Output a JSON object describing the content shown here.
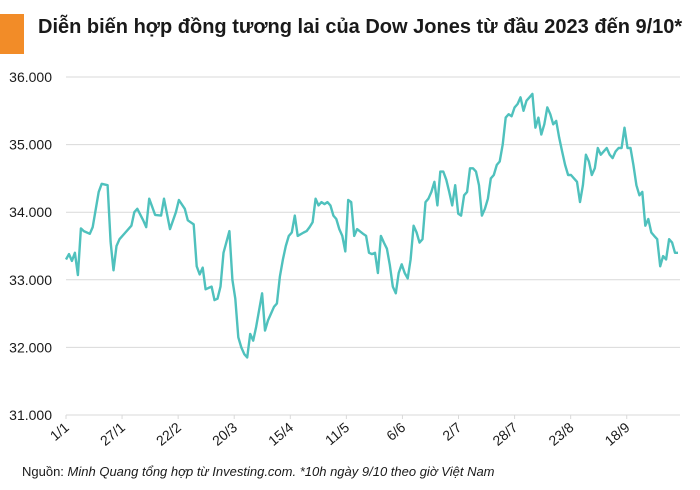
{
  "title": "Diễn biến hợp đồng tương lai của Dow Jones từ đầu 2023 đến 9/10*",
  "source_label": "Nguồn:",
  "source_text": "Minh Quang tổng hợp từ Investing.com. *10h ngày 9/10 theo giờ Việt Nam",
  "colors": {
    "accent": "#f28c28",
    "line": "#4fc1bd",
    "grid": "#d9d9d9",
    "text": "#1a1a1a"
  },
  "chart_data": {
    "type": "line",
    "title": "Diễn biến hợp đồng tương lai của Dow Jones từ đầu 2023 đến 9/10*",
    "xlabel": "",
    "ylabel": "",
    "ylim": [
      31000,
      36000
    ],
    "yticks": [
      {
        "value": 31000,
        "label": "31.000"
      },
      {
        "value": 32000,
        "label": "32.000"
      },
      {
        "value": 33000,
        "label": "33.000"
      },
      {
        "value": 34000,
        "label": "34.000"
      },
      {
        "value": 35000,
        "label": "35.000"
      },
      {
        "value": 36000,
        "label": "36.000"
      }
    ],
    "xticks": [
      "1/1",
      "27/1",
      "22/2",
      "20/3",
      "15/4",
      "11/5",
      "6/6",
      "2/7",
      "28/7",
      "23/8",
      "18/9"
    ],
    "grid": true,
    "legend": "none",
    "x_days_per_tick": 26,
    "total_days": 282,
    "series": [
      {
        "values": [
          [
            0,
            33300
          ],
          [
            1,
            33380
          ],
          [
            2,
            33280
          ],
          [
            3,
            33400
          ],
          [
            4,
            33070
          ],
          [
            5,
            33760
          ],
          [
            6,
            33720
          ],
          [
            8,
            33680
          ],
          [
            9,
            33780
          ],
          [
            11,
            34300
          ],
          [
            12,
            34420
          ],
          [
            14,
            34400
          ],
          [
            15,
            33560
          ],
          [
            16,
            33140
          ],
          [
            17,
            33500
          ],
          [
            18,
            33600
          ],
          [
            20,
            33700
          ],
          [
            22,
            33800
          ],
          [
            23,
            34000
          ],
          [
            24,
            34050
          ],
          [
            26,
            33880
          ],
          [
            27,
            33780
          ],
          [
            28,
            34200
          ],
          [
            29,
            34080
          ],
          [
            30,
            33960
          ],
          [
            32,
            33950
          ],
          [
            33,
            34200
          ],
          [
            35,
            33750
          ],
          [
            37,
            34000
          ],
          [
            38,
            34180
          ],
          [
            40,
            34050
          ],
          [
            41,
            33880
          ],
          [
            43,
            33820
          ],
          [
            44,
            33200
          ],
          [
            45,
            33080
          ],
          [
            46,
            33180
          ],
          [
            47,
            32860
          ],
          [
            48,
            32880
          ],
          [
            49,
            32900
          ],
          [
            50,
            32700
          ],
          [
            51,
            32720
          ],
          [
            52,
            32900
          ],
          [
            53,
            33400
          ],
          [
            55,
            33720
          ],
          [
            56,
            33000
          ],
          [
            57,
            32720
          ],
          [
            58,
            32150
          ],
          [
            59,
            32000
          ],
          [
            60,
            31900
          ],
          [
            61,
            31850
          ],
          [
            62,
            32200
          ],
          [
            63,
            32100
          ],
          [
            64,
            32300
          ],
          [
            65,
            32550
          ],
          [
            66,
            32800
          ],
          [
            67,
            32250
          ],
          [
            68,
            32400
          ],
          [
            69,
            32500
          ],
          [
            70,
            32600
          ],
          [
            71,
            32650
          ],
          [
            72,
            33050
          ],
          [
            73,
            33300
          ],
          [
            74,
            33500
          ],
          [
            75,
            33650
          ],
          [
            76,
            33700
          ],
          [
            77,
            33950
          ],
          [
            78,
            33650
          ],
          [
            80,
            33700
          ],
          [
            81,
            33720
          ],
          [
            82,
            33780
          ],
          [
            83,
            33850
          ],
          [
            84,
            34200
          ],
          [
            85,
            34100
          ],
          [
            86,
            34150
          ],
          [
            87,
            34120
          ],
          [
            88,
            34150
          ],
          [
            89,
            34100
          ],
          [
            90,
            33950
          ],
          [
            91,
            33900
          ],
          [
            92,
            33750
          ],
          [
            93,
            33650
          ],
          [
            94,
            33420
          ],
          [
            95,
            34180
          ],
          [
            96,
            34150
          ],
          [
            97,
            33650
          ],
          [
            98,
            33750
          ],
          [
            100,
            33680
          ],
          [
            101,
            33650
          ],
          [
            102,
            33400
          ],
          [
            103,
            33380
          ],
          [
            104,
            33400
          ],
          [
            105,
            33100
          ],
          [
            106,
            33650
          ],
          [
            107,
            33550
          ],
          [
            108,
            33460
          ],
          [
            109,
            33220
          ],
          [
            110,
            32900
          ],
          [
            111,
            32800
          ],
          [
            112,
            33100
          ],
          [
            113,
            33230
          ],
          [
            114,
            33100
          ],
          [
            115,
            33020
          ],
          [
            116,
            33300
          ],
          [
            117,
            33800
          ],
          [
            118,
            33700
          ],
          [
            119,
            33550
          ],
          [
            120,
            33600
          ],
          [
            121,
            34150
          ],
          [
            122,
            34200
          ],
          [
            123,
            34300
          ],
          [
            124,
            34450
          ],
          [
            125,
            34100
          ],
          [
            126,
            34600
          ],
          [
            127,
            34600
          ],
          [
            128,
            34480
          ],
          [
            129,
            34300
          ],
          [
            130,
            34100
          ],
          [
            131,
            34400
          ],
          [
            132,
            33980
          ],
          [
            133,
            33950
          ],
          [
            134,
            34250
          ],
          [
            135,
            34300
          ],
          [
            136,
            34650
          ],
          [
            137,
            34650
          ],
          [
            138,
            34600
          ],
          [
            139,
            34400
          ],
          [
            140,
            33950
          ],
          [
            141,
            34050
          ],
          [
            142,
            34200
          ],
          [
            143,
            34500
          ],
          [
            144,
            34550
          ],
          [
            145,
            34700
          ],
          [
            146,
            34750
          ],
          [
            147,
            35000
          ],
          [
            148,
            35400
          ],
          [
            149,
            35450
          ],
          [
            150,
            35420
          ],
          [
            151,
            35550
          ],
          [
            152,
            35600
          ],
          [
            153,
            35700
          ],
          [
            154,
            35500
          ],
          [
            155,
            35650
          ],
          [
            156,
            35700
          ],
          [
            157,
            35750
          ],
          [
            158,
            35250
          ],
          [
            159,
            35400
          ],
          [
            160,
            35150
          ],
          [
            161,
            35300
          ],
          [
            162,
            35550
          ],
          [
            163,
            35450
          ],
          [
            164,
            35300
          ],
          [
            165,
            35350
          ],
          [
            166,
            35100
          ],
          [
            167,
            34900
          ],
          [
            168,
            34700
          ],
          [
            169,
            34550
          ],
          [
            170,
            34550
          ],
          [
            171,
            34500
          ],
          [
            172,
            34450
          ],
          [
            173,
            34150
          ],
          [
            174,
            34400
          ],
          [
            175,
            34850
          ],
          [
            176,
            34750
          ],
          [
            177,
            34550
          ],
          [
            178,
            34650
          ],
          [
            179,
            34950
          ],
          [
            180,
            34850
          ],
          [
            181,
            34900
          ],
          [
            182,
            34950
          ],
          [
            183,
            34850
          ],
          [
            184,
            34800
          ],
          [
            185,
            34900
          ],
          [
            186,
            34950
          ],
          [
            187,
            34950
          ],
          [
            188,
            35250
          ],
          [
            189,
            34950
          ],
          [
            190,
            34950
          ],
          [
            191,
            34700
          ],
          [
            192,
            34400
          ],
          [
            193,
            34250
          ],
          [
            194,
            34300
          ],
          [
            195,
            33800
          ],
          [
            196,
            33900
          ],
          [
            197,
            33700
          ],
          [
            198,
            33650
          ],
          [
            199,
            33600
          ],
          [
            200,
            33200
          ],
          [
            201,
            33350
          ],
          [
            202,
            33300
          ],
          [
            203,
            33600
          ],
          [
            204,
            33550
          ],
          [
            205,
            33400
          ],
          [
            206,
            33400
          ]
        ]
      }
    ]
  }
}
